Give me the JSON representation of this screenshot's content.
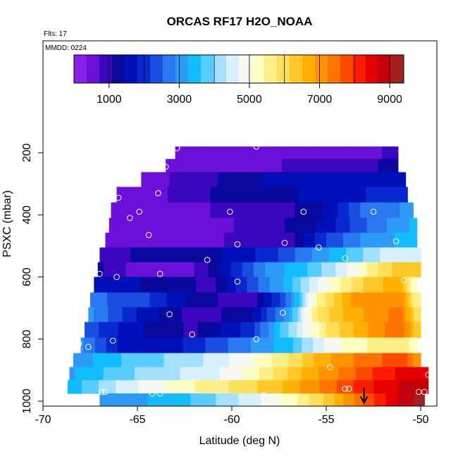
{
  "chart_data": {
    "type": "heatmap",
    "title": "ORCAS RF17 H2O_NOAA",
    "flights_label": "Flts: 17",
    "date_label": "MMDD: 0224",
    "xlabel": "Latitude (deg N)",
    "ylabel": "PSXC (mbar)",
    "xlim": [
      -70,
      -49.5
    ],
    "ylim": [
      1005,
      95
    ],
    "x_ticks": [
      -70,
      -65,
      -60,
      -55,
      -50
    ],
    "y_ticks": [
      200,
      400,
      600,
      800,
      1000
    ],
    "grid": false,
    "colorbar": {
      "min": 0,
      "max": 9400,
      "ticks": [
        1000,
        3000,
        5000,
        7000,
        9000
      ],
      "colors": [
        "#8a1fe8",
        "#6a10d8",
        "#3a06c0",
        "#08089c",
        "#0010b8",
        "#0828d0",
        "#1a4ee0",
        "#2a78f0",
        "#2e9af8",
        "#12bcff",
        "#56ccff",
        "#a4e0ff",
        "#d8f0ff",
        "#f6f9f2",
        "#ffffc4",
        "#fff08a",
        "#ffe05a",
        "#ffc828",
        "#ffb000",
        "#ff9400",
        "#ff7400",
        "#ff4a00",
        "#ff1a00",
        "#e40000",
        "#c4000c",
        "#a02020"
      ]
    },
    "bands": [
      {
        "p": 200,
        "lat_min": -63,
        "lat_max": -51.2,
        "stops": [
          [
            -63,
            500
          ],
          [
            -53,
            600
          ],
          [
            -51.5,
            800
          ]
        ]
      },
      {
        "p": 240,
        "lat_min": -63.5,
        "lat_max": -51.2,
        "stops": [
          [
            -63.5,
            500
          ],
          [
            -58,
            700
          ],
          [
            -53,
            900
          ],
          [
            -51.5,
            1300
          ]
        ]
      },
      {
        "p": 285,
        "lat_min": -64.8,
        "lat_max": -50.8,
        "stops": [
          [
            -64.8,
            500
          ],
          [
            -62,
            900
          ],
          [
            -58,
            1500
          ],
          [
            -53,
            1600
          ],
          [
            -51,
            1700
          ]
        ]
      },
      {
        "p": 335,
        "lat_min": -66.1,
        "lat_max": -50.7,
        "stops": [
          [
            -66.1,
            500
          ],
          [
            -63.5,
            700
          ],
          [
            -61,
            1100
          ],
          [
            -58,
            1300
          ],
          [
            -55,
            1600
          ],
          [
            -51,
            2000
          ]
        ]
      },
      {
        "p": 385,
        "lat_min": -66.4,
        "lat_max": -50.4,
        "stops": [
          [
            -66.4,
            500
          ],
          [
            -63,
            600
          ],
          [
            -60,
            800
          ],
          [
            -57,
            1000
          ],
          [
            -55,
            1500
          ],
          [
            -53,
            2600
          ],
          [
            -51,
            2900
          ]
        ]
      },
      {
        "p": 435,
        "lat_min": -66.5,
        "lat_max": -50.2,
        "stops": [
          [
            -66.5,
            500
          ],
          [
            -61,
            500
          ],
          [
            -59,
            900
          ],
          [
            -57,
            1100
          ],
          [
            -55,
            1600
          ],
          [
            -53,
            2500
          ],
          [
            -50.5,
            3300
          ]
        ]
      },
      {
        "p": 480,
        "lat_min": -66.7,
        "lat_max": -50.2,
        "stops": [
          [
            -66.7,
            500
          ],
          [
            -61,
            600
          ],
          [
            -59,
            1000
          ],
          [
            -57,
            900
          ],
          [
            -55,
            2200
          ],
          [
            -53,
            3000
          ],
          [
            -50.5,
            3400
          ]
        ]
      },
      {
        "p": 530,
        "lat_min": -67,
        "lat_max": -50,
        "stops": [
          [
            -67,
            1000
          ],
          [
            -63,
            1200
          ],
          [
            -60,
            1500
          ],
          [
            -58,
            2000
          ],
          [
            -56,
            2800
          ],
          [
            -54,
            3600
          ],
          [
            -52,
            4400
          ],
          [
            -50.5,
            4600
          ]
        ]
      },
      {
        "p": 575,
        "lat_min": -67.1,
        "lat_max": -50,
        "stops": [
          [
            -67.1,
            1200
          ],
          [
            -65,
            500
          ],
          [
            -62,
            700
          ],
          [
            -60,
            1800
          ],
          [
            -58,
            3000
          ],
          [
            -56,
            3600
          ],
          [
            -54,
            4600
          ],
          [
            -52,
            6000
          ],
          [
            -50.5,
            6400
          ]
        ]
      },
      {
        "p": 625,
        "lat_min": -67.3,
        "lat_max": -50.2,
        "stops": [
          [
            -67.3,
            1800
          ],
          [
            -64,
            1300
          ],
          [
            -61,
            1000
          ],
          [
            -58.5,
            2600
          ],
          [
            -57,
            3400
          ],
          [
            -55,
            5000
          ],
          [
            -53,
            6200
          ],
          [
            -51,
            6800
          ],
          [
            -50.5,
            5200
          ]
        ]
      },
      {
        "p": 675,
        "lat_min": -67.5,
        "lat_max": -50,
        "stops": [
          [
            -67.5,
            2600
          ],
          [
            -65,
            2400
          ],
          [
            -62,
            1300
          ],
          [
            -59,
            800
          ],
          [
            -57,
            2600
          ],
          [
            -55.5,
            5400
          ],
          [
            -53.5,
            7000
          ],
          [
            -51,
            7200
          ],
          [
            -50.3,
            5600
          ]
        ]
      },
      {
        "p": 720,
        "lat_min": -67.6,
        "lat_max": -50,
        "stops": [
          [
            -67.6,
            3000
          ],
          [
            -65,
            1800
          ],
          [
            -62,
            900
          ],
          [
            -59,
            1300
          ],
          [
            -57,
            3200
          ],
          [
            -55.5,
            5800
          ],
          [
            -54,
            6600
          ],
          [
            -51,
            7400
          ],
          [
            -50.3,
            6000
          ]
        ]
      },
      {
        "p": 770,
        "lat_min": -67.8,
        "lat_max": -50,
        "stops": [
          [
            -67.8,
            2400
          ],
          [
            -65,
            1500
          ],
          [
            -62,
            1000
          ],
          [
            -59,
            2000
          ],
          [
            -57,
            4000
          ],
          [
            -55,
            5800
          ],
          [
            -53,
            6800
          ],
          [
            -51,
            7600
          ],
          [
            -50.3,
            6400
          ]
        ]
      },
      {
        "p": 820,
        "lat_min": -68,
        "lat_max": -50.2,
        "stops": [
          [
            -68,
            3000
          ],
          [
            -66,
            1800
          ],
          [
            -63,
            1700
          ],
          [
            -60,
            2600
          ],
          [
            -57,
            3500
          ],
          [
            -55,
            4800
          ],
          [
            -53,
            5400
          ],
          [
            -51,
            5800
          ],
          [
            -50.5,
            5400
          ]
        ]
      },
      {
        "p": 870,
        "lat_min": -68.4,
        "lat_max": -50,
        "stops": [
          [
            -68.4,
            3000
          ],
          [
            -65,
            3800
          ],
          [
            -62,
            4200
          ],
          [
            -59,
            5000
          ],
          [
            -57,
            5800
          ],
          [
            -55,
            6800
          ],
          [
            -53,
            7400
          ],
          [
            -51,
            7800
          ],
          [
            -50.3,
            7200
          ]
        ]
      },
      {
        "p": 910,
        "lat_min": -68.6,
        "lat_max": -49.6,
        "stops": [
          [
            -68.6,
            3200
          ],
          [
            -65,
            4000
          ],
          [
            -61,
            4600
          ],
          [
            -59,
            5200
          ],
          [
            -57,
            6200
          ],
          [
            -55,
            7000
          ],
          [
            -53,
            7800
          ],
          [
            -51,
            8400
          ],
          [
            -49.8,
            8600
          ]
        ]
      },
      {
        "p": 955,
        "lat_min": -68.7,
        "lat_max": -49.6,
        "stops": [
          [
            -68.7,
            3300
          ],
          [
            -66,
            4400
          ],
          [
            -63,
            5200
          ],
          [
            -60,
            5800
          ],
          [
            -57,
            6600
          ],
          [
            -55,
            7400
          ],
          [
            -53,
            8200
          ],
          [
            -51,
            8700
          ],
          [
            -49.8,
            9000
          ]
        ]
      },
      {
        "p": 995,
        "lat_min": -67,
        "lat_max": -49.8,
        "stops": [
          [
            -67,
            3000
          ],
          [
            -63,
            3400
          ],
          [
            -60,
            4200
          ],
          [
            -57,
            5200
          ],
          [
            -55,
            6200
          ],
          [
            -53,
            7600
          ],
          [
            -51,
            8800
          ],
          [
            -50,
            9200
          ]
        ]
      }
    ],
    "markers": [
      {
        "lat": -62.9,
        "p": 185
      },
      {
        "lat": -58.7,
        "p": 180
      },
      {
        "lat": -50.8,
        "p": 195
      },
      {
        "lat": -63.5,
        "p": 245
      },
      {
        "lat": -66.0,
        "p": 345
      },
      {
        "lat": -63.9,
        "p": 330
      },
      {
        "lat": -64.9,
        "p": 390
      },
      {
        "lat": -65.4,
        "p": 410
      },
      {
        "lat": -60.1,
        "p": 390
      },
      {
        "lat": -56.2,
        "p": 390
      },
      {
        "lat": -52.5,
        "p": 390
      },
      {
        "lat": -64.4,
        "p": 465
      },
      {
        "lat": -59.7,
        "p": 495
      },
      {
        "lat": -57.2,
        "p": 490
      },
      {
        "lat": -55.4,
        "p": 505
      },
      {
        "lat": -51.3,
        "p": 485
      },
      {
        "lat": -61.3,
        "p": 545
      },
      {
        "lat": -54.0,
        "p": 540
      },
      {
        "lat": -67.0,
        "p": 590
      },
      {
        "lat": -66.1,
        "p": 600
      },
      {
        "lat": -63.8,
        "p": 590
      },
      {
        "lat": -59.7,
        "p": 615
      },
      {
        "lat": -50.9,
        "p": 610
      },
      {
        "lat": -68.0,
        "p": 710
      },
      {
        "lat": -63.3,
        "p": 720
      },
      {
        "lat": -57.3,
        "p": 715
      },
      {
        "lat": -55.2,
        "p": 760
      },
      {
        "lat": -62.1,
        "p": 785
      },
      {
        "lat": -58.7,
        "p": 800
      },
      {
        "lat": -66.3,
        "p": 805
      },
      {
        "lat": -68.1,
        "p": 815
      },
      {
        "lat": -67.6,
        "p": 825
      },
      {
        "lat": -68.6,
        "p": 870
      },
      {
        "lat": -54.8,
        "p": 890
      },
      {
        "lat": -69.0,
        "p": 950
      },
      {
        "lat": -66.9,
        "p": 970
      },
      {
        "lat": -66.7,
        "p": 970
      },
      {
        "lat": -64.2,
        "p": 975
      },
      {
        "lat": -63.8,
        "p": 975
      },
      {
        "lat": -58.3,
        "p": 980
      },
      {
        "lat": -54.0,
        "p": 960
      },
      {
        "lat": -53.8,
        "p": 960
      },
      {
        "lat": -50.1,
        "p": 970
      },
      {
        "lat": -49.8,
        "p": 970
      },
      {
        "lat": -49.6,
        "p": 915
      }
    ],
    "arrow": {
      "lat": -53.0,
      "p_from": 955,
      "p_to": 1005
    }
  }
}
